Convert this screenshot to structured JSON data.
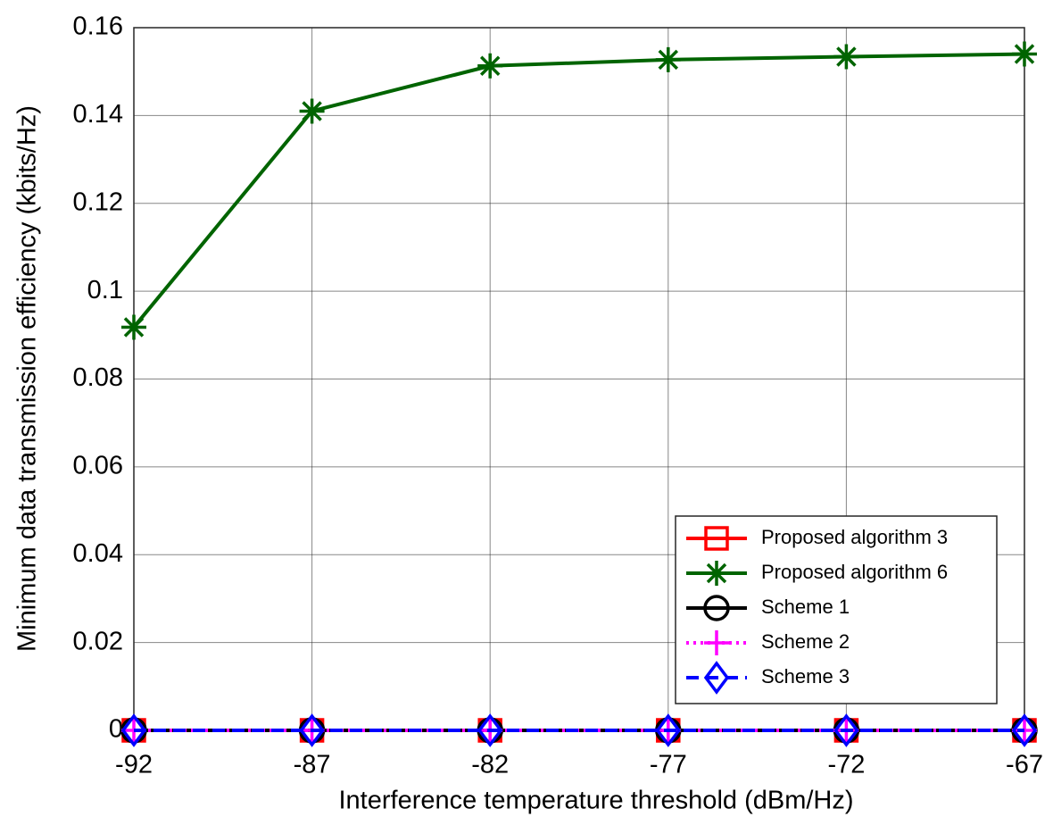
{
  "chart_data": {
    "type": "line",
    "x_label": "Interference temperature threshold (dBm/Hz)",
    "y_label": "Minimum data transmission efficiency (kbits/Hz)",
    "x": [
      -92,
      -87,
      -82,
      -77,
      -72,
      -67
    ],
    "series": [
      {
        "name": "Proposed algorithm 3",
        "color": "#ff0000",
        "marker": "square",
        "dash": "solid",
        "values": [
          0,
          0,
          0,
          0,
          0,
          0
        ]
      },
      {
        "name": "Proposed algorithm 6",
        "color": "#006400",
        "marker": "star",
        "dash": "solid",
        "values": [
          0.0918,
          0.141,
          0.1513,
          0.1527,
          0.1534,
          0.154
        ]
      },
      {
        "name": "Scheme 1",
        "color": "#000000",
        "marker": "circle",
        "dash": "solid",
        "values": [
          0,
          0,
          0,
          0,
          0,
          0
        ]
      },
      {
        "name": "Scheme 2",
        "color": "#ff00ff",
        "marker": "plus",
        "dash": "dotted",
        "values": [
          0,
          0,
          0,
          0,
          0,
          0
        ]
      },
      {
        "name": "Scheme 3",
        "color": "#0000ff",
        "marker": "diamond",
        "dash": "dashed",
        "values": [
          0,
          0,
          0,
          0,
          0,
          0
        ]
      }
    ],
    "xlim": [
      -92,
      -67
    ],
    "xticks": [
      -92,
      -87,
      -82,
      -77,
      -72,
      -67
    ],
    "ylim": [
      0,
      0.16
    ],
    "yticks": [
      0,
      0.02,
      0.04,
      0.06,
      0.08,
      0.1,
      0.12,
      0.14,
      0.16
    ],
    "grid": true,
    "legend": "lower right"
  }
}
